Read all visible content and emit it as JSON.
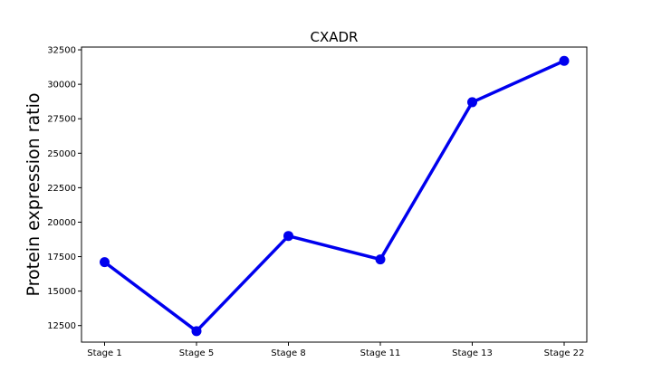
{
  "chart_data": {
    "type": "line",
    "title": "CXADR",
    "xlabel": "",
    "ylabel": "Protein expression ratio",
    "categories": [
      "Stage 1",
      "Stage 5",
      "Stage 8",
      "Stage 11",
      "Stage 13",
      "Stage 22"
    ],
    "series": [
      {
        "values": [
          17100,
          12100,
          19000,
          17300,
          28700,
          31700
        ],
        "color": "#0000ee"
      }
    ],
    "yticks": [
      "12500",
      "15000",
      "17500",
      "20000",
      "22500",
      "25000",
      "27500",
      "30000",
      "32500"
    ],
    "ylim": [
      11300,
      32700
    ],
    "grid": false,
    "legend": "none"
  }
}
